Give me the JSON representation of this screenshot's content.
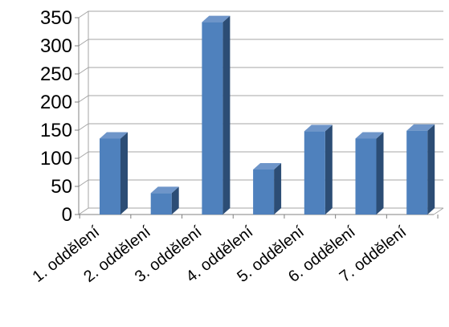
{
  "chart_data": {
    "type": "bar",
    "style": "3d-clustered-column",
    "categories": [
      "1. oddělení",
      "2. oddělení",
      "3. oddělení",
      "4. oddělení",
      "5. oddělení",
      "6. oddělení",
      "7. oddělení"
    ],
    "values": [
      135,
      38,
      342,
      80,
      148,
      135,
      149
    ],
    "yticks": [
      "0",
      "50",
      "100",
      "150",
      "200",
      "250",
      "300",
      "350"
    ],
    "ylim": [
      0,
      350
    ],
    "grid": true,
    "legend": "none",
    "title": "",
    "xlabel": "",
    "ylabel": "",
    "colors": {
      "bar_front": "#4F81BD",
      "bar_side": "#2C4D75",
      "bar_top": "#6E95C9",
      "gridline": "#A6A6A6",
      "axis": "#808080"
    }
  }
}
